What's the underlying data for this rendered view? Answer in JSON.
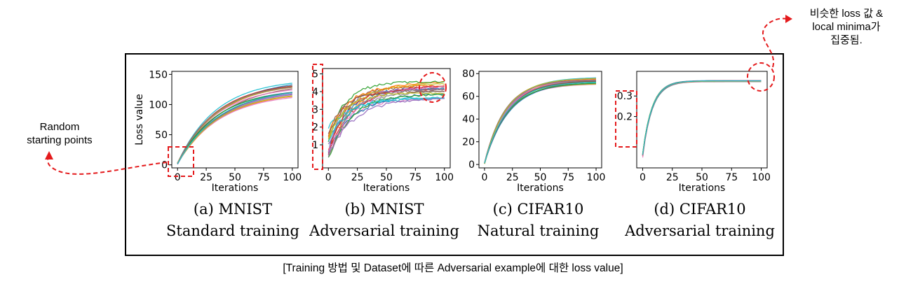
{
  "caption": "[Training 방법 및 Dataset에 따른 Adversarial example에 대한 loss value]",
  "annotations": {
    "left": [
      "Random",
      "starting points"
    ],
    "right": [
      "비슷한 loss 값 &",
      "local minima가",
      "집중됨."
    ]
  },
  "colors": {
    "series": [
      "#1f77b4",
      "#ff7f0e",
      "#2ca02c",
      "#d62728",
      "#9467bd",
      "#8c564b",
      "#e377c2",
      "#7f7f7f",
      "#bcbd22",
      "#17becf"
    ],
    "highlight": "#e41a1c"
  },
  "chart_data": [
    {
      "type": "line",
      "caption_line1": "(a) MNIST",
      "caption_line2": "Standard training",
      "xlabel": "Iterations",
      "ylabel": "Loss value",
      "xlim": [
        -5,
        105
      ],
      "ylim": [
        -5,
        155
      ],
      "xticks": [
        0,
        25,
        50,
        75,
        100
      ],
      "yticks": [
        0,
        50,
        100,
        150
      ],
      "series_count": 20,
      "start_range": [
        1,
        4
      ],
      "final_range": [
        118,
        145
      ],
      "rate_range": [
        0.025,
        0.03
      ]
    },
    {
      "type": "line",
      "caption_line1": "(b) MNIST",
      "caption_line2": "Adversarial training",
      "xlabel": "Iterations",
      "ylabel": "",
      "xlim": [
        -5,
        105
      ],
      "ylim": [
        -0.3,
        5.3
      ],
      "xticks": [
        0,
        25,
        50,
        75,
        100
      ],
      "yticks": [
        1,
        2,
        3,
        4,
        5
      ],
      "series_count": 20,
      "start_range": [
        0.0,
        2.0
      ],
      "final_range": [
        3.6,
        4.7
      ],
      "rate_range": [
        0.04,
        0.07
      ]
    },
    {
      "type": "line",
      "caption_line1": "(c) CIFAR10",
      "caption_line2": "Natural training",
      "xlabel": "Iterations",
      "ylabel": "",
      "xlim": [
        -5,
        105
      ],
      "ylim": [
        -3,
        82
      ],
      "xticks": [
        0,
        25,
        50,
        75,
        100
      ],
      "yticks": [
        0,
        20,
        40,
        60,
        80
      ],
      "series_count": 20,
      "start_range": [
        0.5,
        1.5
      ],
      "final_range": [
        71,
        77
      ],
      "rate_range": [
        0.045,
        0.055
      ]
    },
    {
      "type": "line",
      "caption_line1": "(d) CIFAR10",
      "caption_line2": "Adversarial training",
      "xlabel": "Iterations",
      "ylabel": "",
      "xlim": [
        -5,
        105
      ],
      "ylim": [
        -0.05,
        0.42
      ],
      "xticks": [
        0,
        25,
        50,
        75,
        100
      ],
      "yticks": [
        0.2,
        0.3
      ],
      "series_count": 20,
      "start_range": [
        0.0,
        0.02
      ],
      "final_range": [
        0.37,
        0.375
      ],
      "rate_range": [
        0.12,
        0.13
      ]
    }
  ]
}
